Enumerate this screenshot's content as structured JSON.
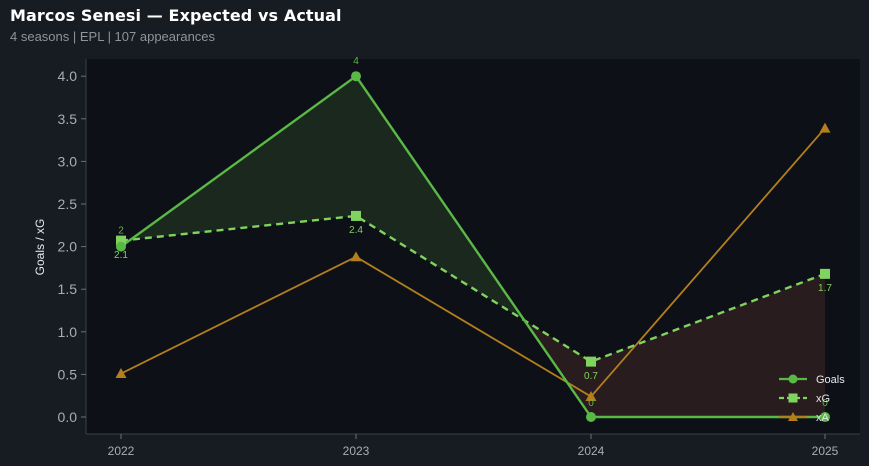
{
  "header": {
    "title": "Marcos Senesi — Expected vs Actual",
    "subtitle": "4 seasons | EPL | 107 appearances"
  },
  "colors": {
    "background": "#171b22",
    "plot_background": "#0d1017",
    "goals": "#5ab946",
    "xg": "#7fd35e",
    "xa": "#b37e1c",
    "overperform_fill": "#1c2a1f",
    "underperform_fill": "#2a1d20",
    "axis_text": "#a9adb3"
  },
  "chart_data": {
    "type": "line",
    "title": "Marcos Senesi — Expected vs Actual",
    "xlabel": "",
    "ylabel": "Goals / xG",
    "x": [
      "2022",
      "2023",
      "2024",
      "2025"
    ],
    "ylim": [
      -0.1,
      4.2
    ],
    "yticks": [
      "0.0",
      "0.5",
      "1.0",
      "1.5",
      "2.0",
      "2.5",
      "3.0",
      "3.5",
      "4.0"
    ],
    "grid": false,
    "legend_position": "bottom-right",
    "series": [
      {
        "name": "Goals",
        "values": [
          2,
          4,
          0,
          0
        ],
        "marker": "circle",
        "style": "solid",
        "labels": [
          "2",
          "4",
          "0",
          "0"
        ]
      },
      {
        "name": "xG",
        "values": [
          2.07,
          2.36,
          0.65,
          1.68
        ],
        "marker": "square",
        "style": "dashed",
        "labels": [
          "2.1",
          "2.4",
          "0.7",
          "1.7"
        ]
      },
      {
        "name": "xA",
        "values": [
          0.51,
          1.88,
          0.24,
          3.39
        ],
        "marker": "triangle",
        "style": "solid",
        "labels": []
      }
    ]
  }
}
